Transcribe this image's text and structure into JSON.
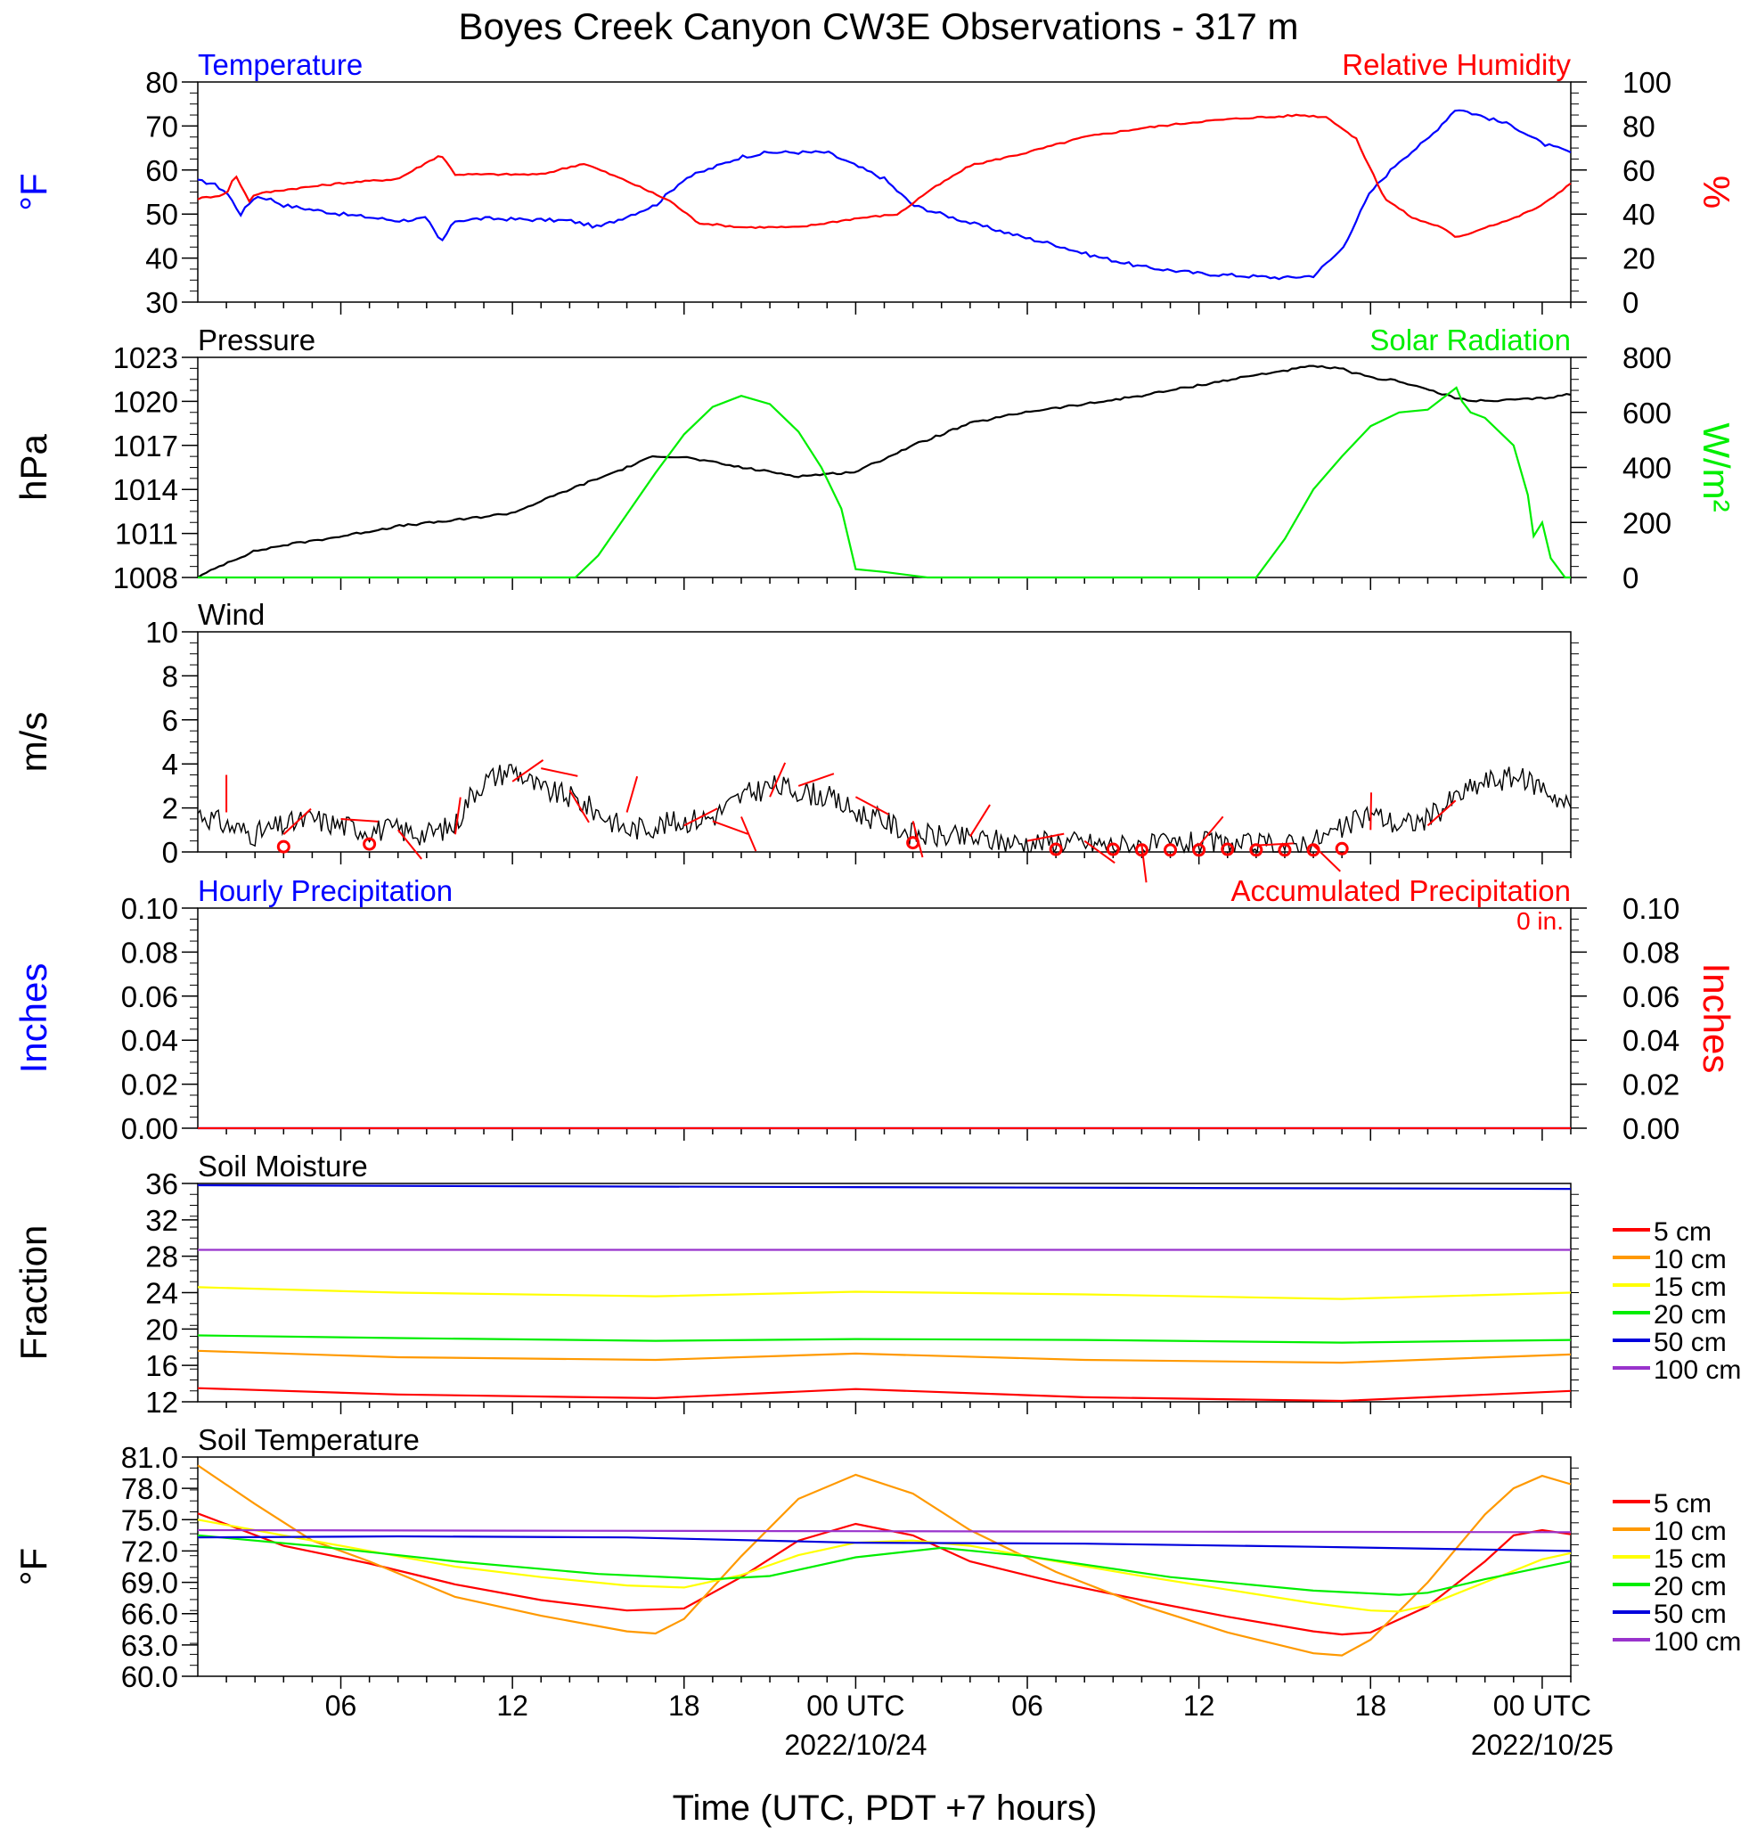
{
  "title": "Boyes Creek Canyon CW3E Observations - 317 m",
  "xaxis": {
    "title": "Time (UTC, PDT +7 hours)",
    "tick_labels": [
      "06",
      "12",
      "18",
      "00 UTC",
      "06",
      "12",
      "18",
      "00 UTC"
    ],
    "tick_hours": [
      6,
      12,
      18,
      24,
      30,
      36,
      42,
      48
    ],
    "date_labels": [
      "2022/10/24",
      "2022/10/25"
    ],
    "date_hours": [
      24,
      48
    ],
    "range_hours": [
      1,
      49
    ]
  },
  "colors": {
    "temperature": "#0000ff",
    "humidity": "#ff0000",
    "pressure": "#000000",
    "solar": "#00ee00",
    "wind": "#000000",
    "wind_barb": "#ff0000",
    "precip_hourly": "#0000ff",
    "precip_accum": "#ff0000",
    "depth_5": "#ff0000",
    "depth_10": "#ff9900",
    "depth_15": "#ffff00",
    "depth_20": "#00ee00",
    "depth_50": "#0000dd",
    "depth_100": "#9933cc"
  },
  "chart_data": [
    {
      "type": "line",
      "panel": "temperature_humidity",
      "left_title": "Temperature",
      "right_title": "Relative Humidity",
      "ylabel_left": "°F",
      "ylabel_right": "%",
      "ylim_left": [
        30,
        80
      ],
      "ylim_right": [
        0,
        100
      ],
      "yticks_left": [
        "30",
        "40",
        "50",
        "60",
        "70",
        "80"
      ],
      "yticks_right": [
        "0",
        "20",
        "40",
        "60",
        "80",
        "100"
      ],
      "series": [
        {
          "name": "Temperature",
          "axis": "left",
          "x": [
            1,
            1.5,
            2,
            2.5,
            3,
            3.5,
            4,
            6,
            8,
            9,
            9.5,
            10,
            11,
            14,
            15,
            17,
            18,
            20,
            21,
            23,
            25,
            26,
            28,
            30,
            31,
            32,
            34,
            36,
            38,
            39,
            40,
            41,
            42,
            43,
            44,
            45,
            46,
            47,
            48,
            49
          ],
          "y": [
            57.5,
            57,
            55,
            50,
            54,
            53.5,
            52,
            50,
            48.5,
            49,
            43.5,
            48.5,
            49,
            48.5,
            47,
            52,
            58,
            63,
            64,
            64,
            58,
            52,
            48,
            44.5,
            43,
            41,
            38,
            36.5,
            35.8,
            35.5,
            36,
            42,
            55,
            62,
            67,
            74,
            72,
            70,
            66,
            64
          ]
        },
        {
          "name": "Relative Humidity",
          "axis": "right",
          "x": [
            1,
            2,
            2.3,
            2.8,
            3,
            4,
            6,
            8,
            9.5,
            10,
            11,
            13,
            14.5,
            16,
            17.5,
            18.5,
            20,
            22,
            24,
            25.5,
            26.5,
            28,
            30,
            32,
            34,
            36,
            37,
            38,
            38.5,
            39.5,
            40.5,
            41.5,
            42.5,
            43.5,
            44.5,
            45,
            46,
            47,
            48,
            49
          ],
          "y": [
            47,
            49,
            58,
            46,
            49,
            51,
            54,
            56,
            67,
            58,
            58,
            58,
            63,
            55,
            46,
            36,
            34,
            34,
            38,
            40,
            50,
            62,
            68,
            75,
            79,
            82,
            83,
            84,
            84,
            85,
            84,
            74,
            47,
            38,
            34,
            29,
            34,
            38,
            44,
            54
          ]
        }
      ]
    },
    {
      "type": "line",
      "panel": "pressure_solar",
      "left_title": "Pressure",
      "right_title": "Solar Radiation",
      "ylabel_left": "hPa",
      "ylabel_right": "W/m²",
      "ylim_left": [
        1008,
        1023
      ],
      "ylim_right": [
        0,
        800
      ],
      "yticks_left": [
        "1008",
        "1011",
        "1014",
        "1017",
        "1020",
        "1023"
      ],
      "yticks_right": [
        "0",
        "200",
        "400",
        "600",
        "800"
      ],
      "series": [
        {
          "name": "Pressure",
          "axis": "left",
          "x": [
            1,
            2,
            3,
            4,
            6,
            8,
            10,
            12,
            14,
            16,
            17,
            18,
            20,
            22,
            24,
            26,
            28,
            30,
            32,
            34,
            36,
            38,
            40,
            41,
            42,
            43,
            44,
            45,
            46,
            47,
            48,
            49
          ],
          "y": [
            1008,
            1009,
            1009.8,
            1010.2,
            1010.8,
            1011.5,
            1011.9,
            1012.4,
            1014,
            1015.5,
            1016.3,
            1016.2,
            1015.5,
            1014.9,
            1015.2,
            1017,
            1018.5,
            1019.3,
            1019.8,
            1020.4,
            1021.1,
            1021.8,
            1022.4,
            1022.2,
            1021.6,
            1021.4,
            1020.8,
            1020.2,
            1020,
            1020.1,
            1020.2,
            1020.5
          ]
        },
        {
          "name": "Solar Radiation",
          "axis": "right",
          "x": [
            1,
            14.2,
            15,
            16,
            17,
            18,
            19,
            20,
            21,
            22,
            22.8,
            23.5,
            24,
            25,
            26.5,
            38,
            39,
            40,
            41,
            42,
            43,
            44,
            45,
            45.2,
            45.5,
            46,
            47,
            47.5,
            47.7,
            48,
            48.3,
            48.8,
            49
          ],
          "y": [
            0,
            0,
            80,
            230,
            380,
            520,
            620,
            660,
            630,
            530,
            400,
            250,
            30,
            20,
            0,
            0,
            140,
            320,
            440,
            550,
            600,
            610,
            690,
            640,
            600,
            580,
            480,
            300,
            150,
            200,
            70,
            0,
            0
          ]
        }
      ]
    },
    {
      "type": "line",
      "panel": "wind",
      "left_title": "Wind",
      "ylabel_left": "m/s",
      "ylim_left": [
        0,
        10
      ],
      "yticks_left": [
        "0",
        "2",
        "4",
        "6",
        "8",
        "10"
      ],
      "series": [
        {
          "name": "Wind",
          "axis": "left",
          "x": [
            1,
            2,
            3,
            4,
            5,
            6,
            7,
            8,
            9,
            10,
            10.5,
            11,
            12,
            13,
            14,
            15,
            16,
            17,
            18,
            19,
            20,
            21,
            22,
            23,
            24,
            25,
            26,
            27,
            28,
            29,
            30,
            31,
            32,
            33,
            34,
            35,
            36,
            37,
            38,
            39,
            40,
            41,
            42,
            43,
            44,
            45,
            46,
            47,
            48,
            49
          ],
          "y": [
            1.8,
            1.2,
            0.8,
            1.2,
            1.5,
            1.2,
            1.0,
            1.0,
            0.8,
            1.2,
            2.5,
            3.2,
            3.8,
            2.8,
            2.5,
            1.8,
            1.0,
            1.2,
            1.4,
            1.6,
            2.5,
            3.0,
            2.8,
            2.5,
            1.8,
            1.4,
            0.8,
            0.7,
            0.6,
            0.5,
            0.4,
            0.5,
            0.4,
            0.3,
            0.3,
            0.3,
            0.4,
            0.3,
            0.3,
            0.3,
            0.5,
            1.0,
            1.8,
            1.2,
            1.5,
            2.5,
            3.2,
            3.4,
            3.0,
            2.0
          ]
        }
      ],
      "barbs_hours": [
        2,
        4,
        6,
        8,
        10,
        12,
        13,
        14,
        16,
        18,
        19,
        20,
        21,
        22,
        24,
        26,
        28,
        30,
        32,
        34,
        36,
        38,
        40,
        42,
        44
      ],
      "calm_hours": [
        4,
        7,
        26,
        31,
        33,
        34,
        35,
        36,
        37,
        38,
        39,
        40,
        41
      ]
    },
    {
      "type": "line",
      "panel": "precipitation",
      "left_title": "Hourly Precipitation",
      "right_title": "Accumulated Precipitation",
      "total_label": "0 in.",
      "ylabel_left": "Inches",
      "ylabel_right": "Inches",
      "ylim_left": [
        0,
        0.1
      ],
      "ylim_right": [
        0,
        0.1
      ],
      "yticks_left": [
        "0.00",
        "0.02",
        "0.04",
        "0.06",
        "0.08",
        "0.10"
      ],
      "yticks_right": [
        "0.00",
        "0.02",
        "0.04",
        "0.06",
        "0.08",
        "0.10"
      ],
      "series": [
        {
          "name": "Hourly Precipitation",
          "axis": "left",
          "x": [
            1,
            49
          ],
          "y": [
            0,
            0
          ]
        },
        {
          "name": "Accumulated Precipitation",
          "axis": "right",
          "x": [
            1,
            49
          ],
          "y": [
            0,
            0
          ]
        }
      ]
    },
    {
      "type": "line",
      "panel": "soil_moisture",
      "left_title": "Soil Moisture",
      "ylabel_left": "Fraction",
      "ylim_left": [
        12,
        36
      ],
      "yticks_left": [
        "12",
        "16",
        "20",
        "24",
        "28",
        "32",
        "36"
      ],
      "legend": [
        "5 cm",
        "10 cm",
        "15 cm",
        "20 cm",
        "50 cm",
        "100 cm"
      ],
      "series": [
        {
          "name": "5 cm",
          "axis": "left",
          "x": [
            1,
            8,
            17,
            24,
            32,
            41,
            49
          ],
          "y": [
            13.5,
            12.8,
            12.4,
            13.4,
            12.5,
            12.1,
            13.2
          ]
        },
        {
          "name": "10 cm",
          "axis": "left",
          "x": [
            1,
            8,
            17,
            24,
            32,
            41,
            49
          ],
          "y": [
            17.6,
            16.9,
            16.6,
            17.3,
            16.6,
            16.3,
            17.2
          ]
        },
        {
          "name": "15 cm",
          "axis": "left",
          "x": [
            1,
            8,
            17,
            24,
            32,
            41,
            49
          ],
          "y": [
            24.6,
            24.0,
            23.6,
            24.1,
            23.8,
            23.3,
            24.0
          ]
        },
        {
          "name": "20 cm",
          "axis": "left",
          "x": [
            1,
            8,
            17,
            24,
            32,
            41,
            49
          ],
          "y": [
            19.3,
            19.0,
            18.7,
            18.9,
            18.8,
            18.5,
            18.8
          ]
        },
        {
          "name": "50 cm",
          "axis": "left",
          "x": [
            1,
            12,
            24,
            36,
            49
          ],
          "y": [
            35.8,
            35.7,
            35.6,
            35.5,
            35.4
          ]
        },
        {
          "name": "100 cm",
          "axis": "left",
          "x": [
            1,
            49
          ],
          "y": [
            28.7,
            28.7
          ]
        }
      ]
    },
    {
      "type": "line",
      "panel": "soil_temperature",
      "left_title": "Soil Temperature",
      "ylabel_left": "°F",
      "ylim_left": [
        60,
        81
      ],
      "yticks_left": [
        "60.0",
        "63.0",
        "66.0",
        "69.0",
        "72.0",
        "75.0",
        "78.0",
        "81.0"
      ],
      "legend": [
        "5 cm",
        "10 cm",
        "15 cm",
        "20 cm",
        "50 cm",
        "100 cm"
      ],
      "series": [
        {
          "name": "5 cm",
          "axis": "left",
          "x": [
            1,
            4,
            7,
            10,
            13,
            16,
            18,
            20,
            22,
            24,
            26,
            28,
            31,
            34,
            37,
            40,
            41,
            42,
            44,
            46,
            47,
            48,
            49
          ],
          "y": [
            75.6,
            72.5,
            70.8,
            68.8,
            67.3,
            66.3,
            66.5,
            69.5,
            73,
            74.6,
            73.5,
            71,
            69,
            67.3,
            65.7,
            64.3,
            64.0,
            64.2,
            66.7,
            71,
            73.5,
            74,
            73.6
          ]
        },
        {
          "name": "10 cm",
          "axis": "left",
          "x": [
            1,
            3,
            5,
            7,
            10,
            13,
            16,
            17,
            18,
            20,
            22,
            24,
            26,
            28,
            31,
            34,
            37,
            40,
            41,
            42,
            44,
            46,
            47,
            48,
            49
          ],
          "y": [
            80.2,
            76.5,
            73.0,
            71.0,
            67.6,
            65.8,
            64.3,
            64.1,
            65.5,
            71.5,
            77,
            79.3,
            77.5,
            74,
            70.0,
            66.8,
            64.2,
            62.2,
            62.0,
            63.5,
            69,
            75.5,
            78,
            79.2,
            78.4
          ]
        },
        {
          "name": "15 cm",
          "axis": "left",
          "x": [
            1,
            4,
            7,
            10,
            13,
            16,
            18,
            20,
            22,
            24,
            26,
            28,
            31,
            34,
            37,
            40,
            42,
            43,
            44,
            46,
            48,
            49
          ],
          "y": [
            75.0,
            73.5,
            72.0,
            70.5,
            69.5,
            68.7,
            68.5,
            69.7,
            71.6,
            72.8,
            73,
            72.5,
            71,
            69.6,
            68.3,
            67.0,
            66.3,
            66.2,
            66.8,
            69,
            71.2,
            71.8
          ]
        },
        {
          "name": "20 cm",
          "axis": "left",
          "x": [
            1,
            5,
            10,
            15,
            19,
            21,
            24,
            27,
            30,
            35,
            40,
            43,
            44,
            46,
            49
          ],
          "y": [
            73.5,
            72.5,
            71.0,
            69.8,
            69.3,
            69.6,
            71.4,
            72.3,
            71.5,
            69.5,
            68.2,
            67.8,
            68,
            69.3,
            71
          ]
        },
        {
          "name": "50 cm",
          "axis": "left",
          "x": [
            1,
            8,
            16,
            24,
            32,
            40,
            49
          ],
          "y": [
            73.3,
            73.4,
            73.3,
            72.8,
            72.7,
            72.4,
            72.0
          ]
        },
        {
          "name": "100 cm",
          "axis": "left",
          "x": [
            1,
            12,
            24,
            36,
            49
          ],
          "y": [
            74.0,
            73.95,
            73.9,
            73.85,
            73.8
          ]
        }
      ]
    }
  ]
}
